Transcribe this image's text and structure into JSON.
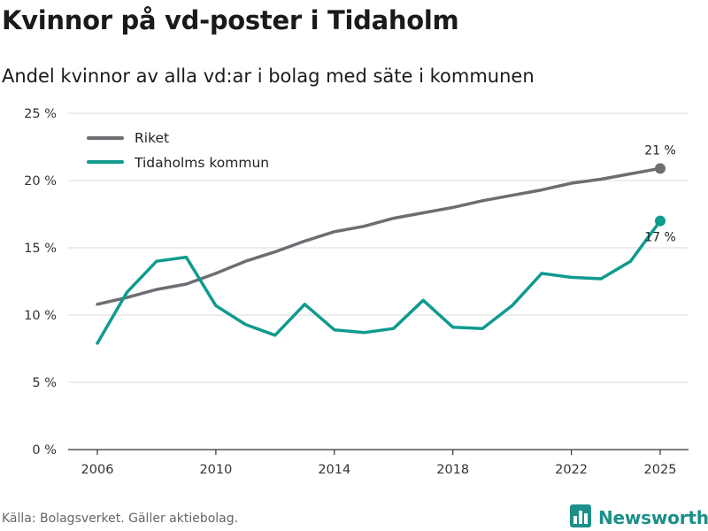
{
  "header": {
    "title": "Kvinnor på vd-poster i Tidaholm",
    "subtitle": "Andel kvinnor av alla vd:ar i bolag med säte i kommunen"
  },
  "footer": {
    "source": "Källa: Bolagsverket. Gäller aktiebolag.",
    "brand": "Newsworthy"
  },
  "icons": {
    "brand_logo": "bar-chart-logo-icon"
  },
  "colors": {
    "riket": "#6e6d73",
    "tidaholm": "#0f9b8e",
    "grid": "#d9d9d9",
    "brand": "#1b8f88"
  },
  "chart_data": {
    "type": "line",
    "title": "Kvinnor på vd-poster i Tidaholm",
    "subtitle": "Andel kvinnor av alla vd:ar i bolag med säte i kommunen",
    "xlabel": "",
    "ylabel": "",
    "x": [
      2006,
      2007,
      2008,
      2009,
      2010,
      2011,
      2012,
      2013,
      2014,
      2015,
      2016,
      2017,
      2018,
      2019,
      2020,
      2021,
      2022,
      2023,
      2024,
      2025
    ],
    "xticks": [
      2006,
      2010,
      2014,
      2018,
      2022,
      2025
    ],
    "yticks": [
      0,
      5,
      10,
      15,
      20,
      25
    ],
    "ytick_suffix": " %",
    "ylim": [
      0,
      25
    ],
    "grid": true,
    "legend_position": "top-left",
    "series": [
      {
        "name": "Riket",
        "color": "#6e6d73",
        "values": [
          10.8,
          11.3,
          11.9,
          12.3,
          13.1,
          14.0,
          14.7,
          15.5,
          16.2,
          16.6,
          17.2,
          17.6,
          18.0,
          18.5,
          18.9,
          19.3,
          19.8,
          20.1,
          20.5,
          20.9
        ],
        "end_label": "21 %"
      },
      {
        "name": "Tidaholms kommun",
        "color": "#0f9b8e",
        "values": [
          7.9,
          11.7,
          14.0,
          14.3,
          10.7,
          9.3,
          8.5,
          10.8,
          8.9,
          8.7,
          9.0,
          11.1,
          9.1,
          9.0,
          10.7,
          13.1,
          12.8,
          12.7,
          14.0,
          17.0
        ],
        "end_label": "17 %"
      }
    ]
  }
}
